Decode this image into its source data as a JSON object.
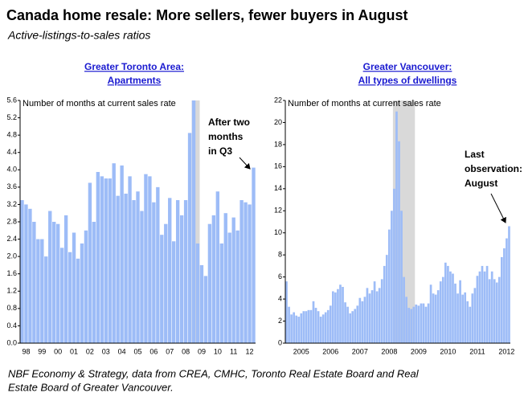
{
  "title": "Canada home resale: More sellers, fewer buyers in August",
  "subtitle": "Active-listings-to-sales ratios",
  "source_lines": [
    "NBF Economy & Strategy, data from CREA, CMHC, Toronto Real Estate Board and Real",
    "Estate Board of Greater Vancouver."
  ],
  "chart_data": [
    {
      "type": "bar",
      "panel_title": [
        "Greater Toronto Area:",
        "Apartments"
      ],
      "y_label": "Number of months at current sales rate",
      "annotation": [
        "After two",
        "months",
        "in Q3"
      ],
      "color": "#9dbcf7",
      "shade_color": "#d9d9d9",
      "shaded": [
        43,
        44
      ],
      "categories": [
        null,
        "98",
        null,
        null,
        null,
        "99",
        null,
        null,
        null,
        "00",
        null,
        null,
        null,
        "01",
        null,
        null,
        null,
        "02",
        null,
        null,
        null,
        "03",
        null,
        null,
        null,
        "04",
        null,
        null,
        null,
        "05",
        null,
        null,
        null,
        "06",
        null,
        null,
        null,
        "07",
        null,
        null,
        null,
        "08",
        null,
        null,
        null,
        "09",
        null,
        null,
        null,
        "10",
        null,
        null,
        null,
        "11",
        null,
        null,
        null,
        "12",
        null
      ],
      "values": [
        3.3,
        3.2,
        3.1,
        2.8,
        2.4,
        2.4,
        2.0,
        3.05,
        2.8,
        2.75,
        2.2,
        2.95,
        2.1,
        2.55,
        1.95,
        2.3,
        2.6,
        3.7,
        2.8,
        3.95,
        3.85,
        3.8,
        3.8,
        4.15,
        3.4,
        4.1,
        3.45,
        3.85,
        3.3,
        3.5,
        3.05,
        3.9,
        3.85,
        3.25,
        3.6,
        2.5,
        2.75,
        3.35,
        2.35,
        3.3,
        2.95,
        3.3,
        4.85,
        5.6,
        2.3,
        1.8,
        1.55,
        2.75,
        2.95,
        3.5,
        2.3,
        3.0,
        2.55,
        2.9,
        2.6,
        3.3,
        3.25,
        3.2,
        4.05
      ],
      "ylim": [
        0,
        5.6
      ],
      "yticks": [
        {
          "value": 0,
          "label": "0.0"
        },
        0.4,
        0.8,
        1.2,
        1.6,
        {
          "value": 2,
          "label": "2.0"
        },
        2.4,
        2.8,
        3.2,
        3.6,
        {
          "value": 4,
          "label": "4.0"
        },
        4.4,
        4.8,
        5.2,
        5.6
      ]
    },
    {
      "type": "bar",
      "panel_title": [
        "Greater Vancouver:",
        "All types of dwellings"
      ],
      "y_label": "Number of months at current sales rate",
      "annotation": [
        "Last",
        "observation:",
        "August"
      ],
      "color": "#9dbcf7",
      "shade_color": "#d9d9d9",
      "shaded": [
        44,
        52
      ],
      "categories": [
        null,
        null,
        null,
        null,
        null,
        null,
        "2005",
        null,
        null,
        null,
        null,
        null,
        null,
        null,
        null,
        null,
        null,
        null,
        "2006",
        null,
        null,
        null,
        null,
        null,
        null,
        null,
        null,
        null,
        null,
        null,
        "2007",
        null,
        null,
        null,
        null,
        null,
        null,
        null,
        null,
        null,
        null,
        null,
        "2008",
        null,
        null,
        null,
        null,
        null,
        null,
        null,
        null,
        null,
        null,
        null,
        "2009",
        null,
        null,
        null,
        null,
        null,
        null,
        null,
        null,
        null,
        null,
        null,
        "2010",
        null,
        null,
        null,
        null,
        null,
        null,
        null,
        null,
        null,
        null,
        null,
        "2011",
        null,
        null,
        null,
        null,
        null,
        null,
        null,
        null,
        null,
        null,
        null,
        "2012",
        null
      ],
      "values": [
        5.6,
        3.3,
        2.6,
        2.8,
        2.5,
        2.4,
        2.7,
        2.9,
        2.9,
        3.0,
        3.0,
        3.8,
        3.2,
        2.9,
        2.4,
        2.6,
        2.8,
        3.0,
        3.4,
        4.7,
        4.6,
        4.9,
        5.3,
        5.1,
        3.7,
        3.3,
        2.7,
        2.9,
        3.1,
        3.4,
        4.1,
        3.8,
        4.2,
        5.0,
        4.5,
        4.8,
        5.6,
        4.7,
        5.0,
        5.8,
        7.0,
        8.0,
        10.3,
        12.0,
        14.0,
        21.0,
        18.3,
        12.0,
        6.0,
        4.2,
        3.2,
        3.1,
        3.3,
        3.5,
        3.4,
        3.6,
        3.6,
        3.3,
        3.6,
        5.3,
        4.5,
        4.4,
        4.8,
        5.6,
        6.0,
        7.3,
        7.0,
        6.5,
        6.3,
        5.4,
        4.5,
        5.7,
        4.4,
        4.6,
        3.8,
        3.3,
        4.5,
        5.0,
        6.1,
        6.5,
        7.0,
        6.5,
        7.0,
        5.8,
        6.5,
        5.8,
        5.5,
        6.0,
        7.8,
        8.6,
        9.5,
        10.6
      ],
      "ylim": [
        0,
        22
      ],
      "yticks": [
        0,
        2,
        4,
        6,
        8,
        10,
        12,
        14,
        16,
        18,
        20,
        22
      ]
    }
  ]
}
